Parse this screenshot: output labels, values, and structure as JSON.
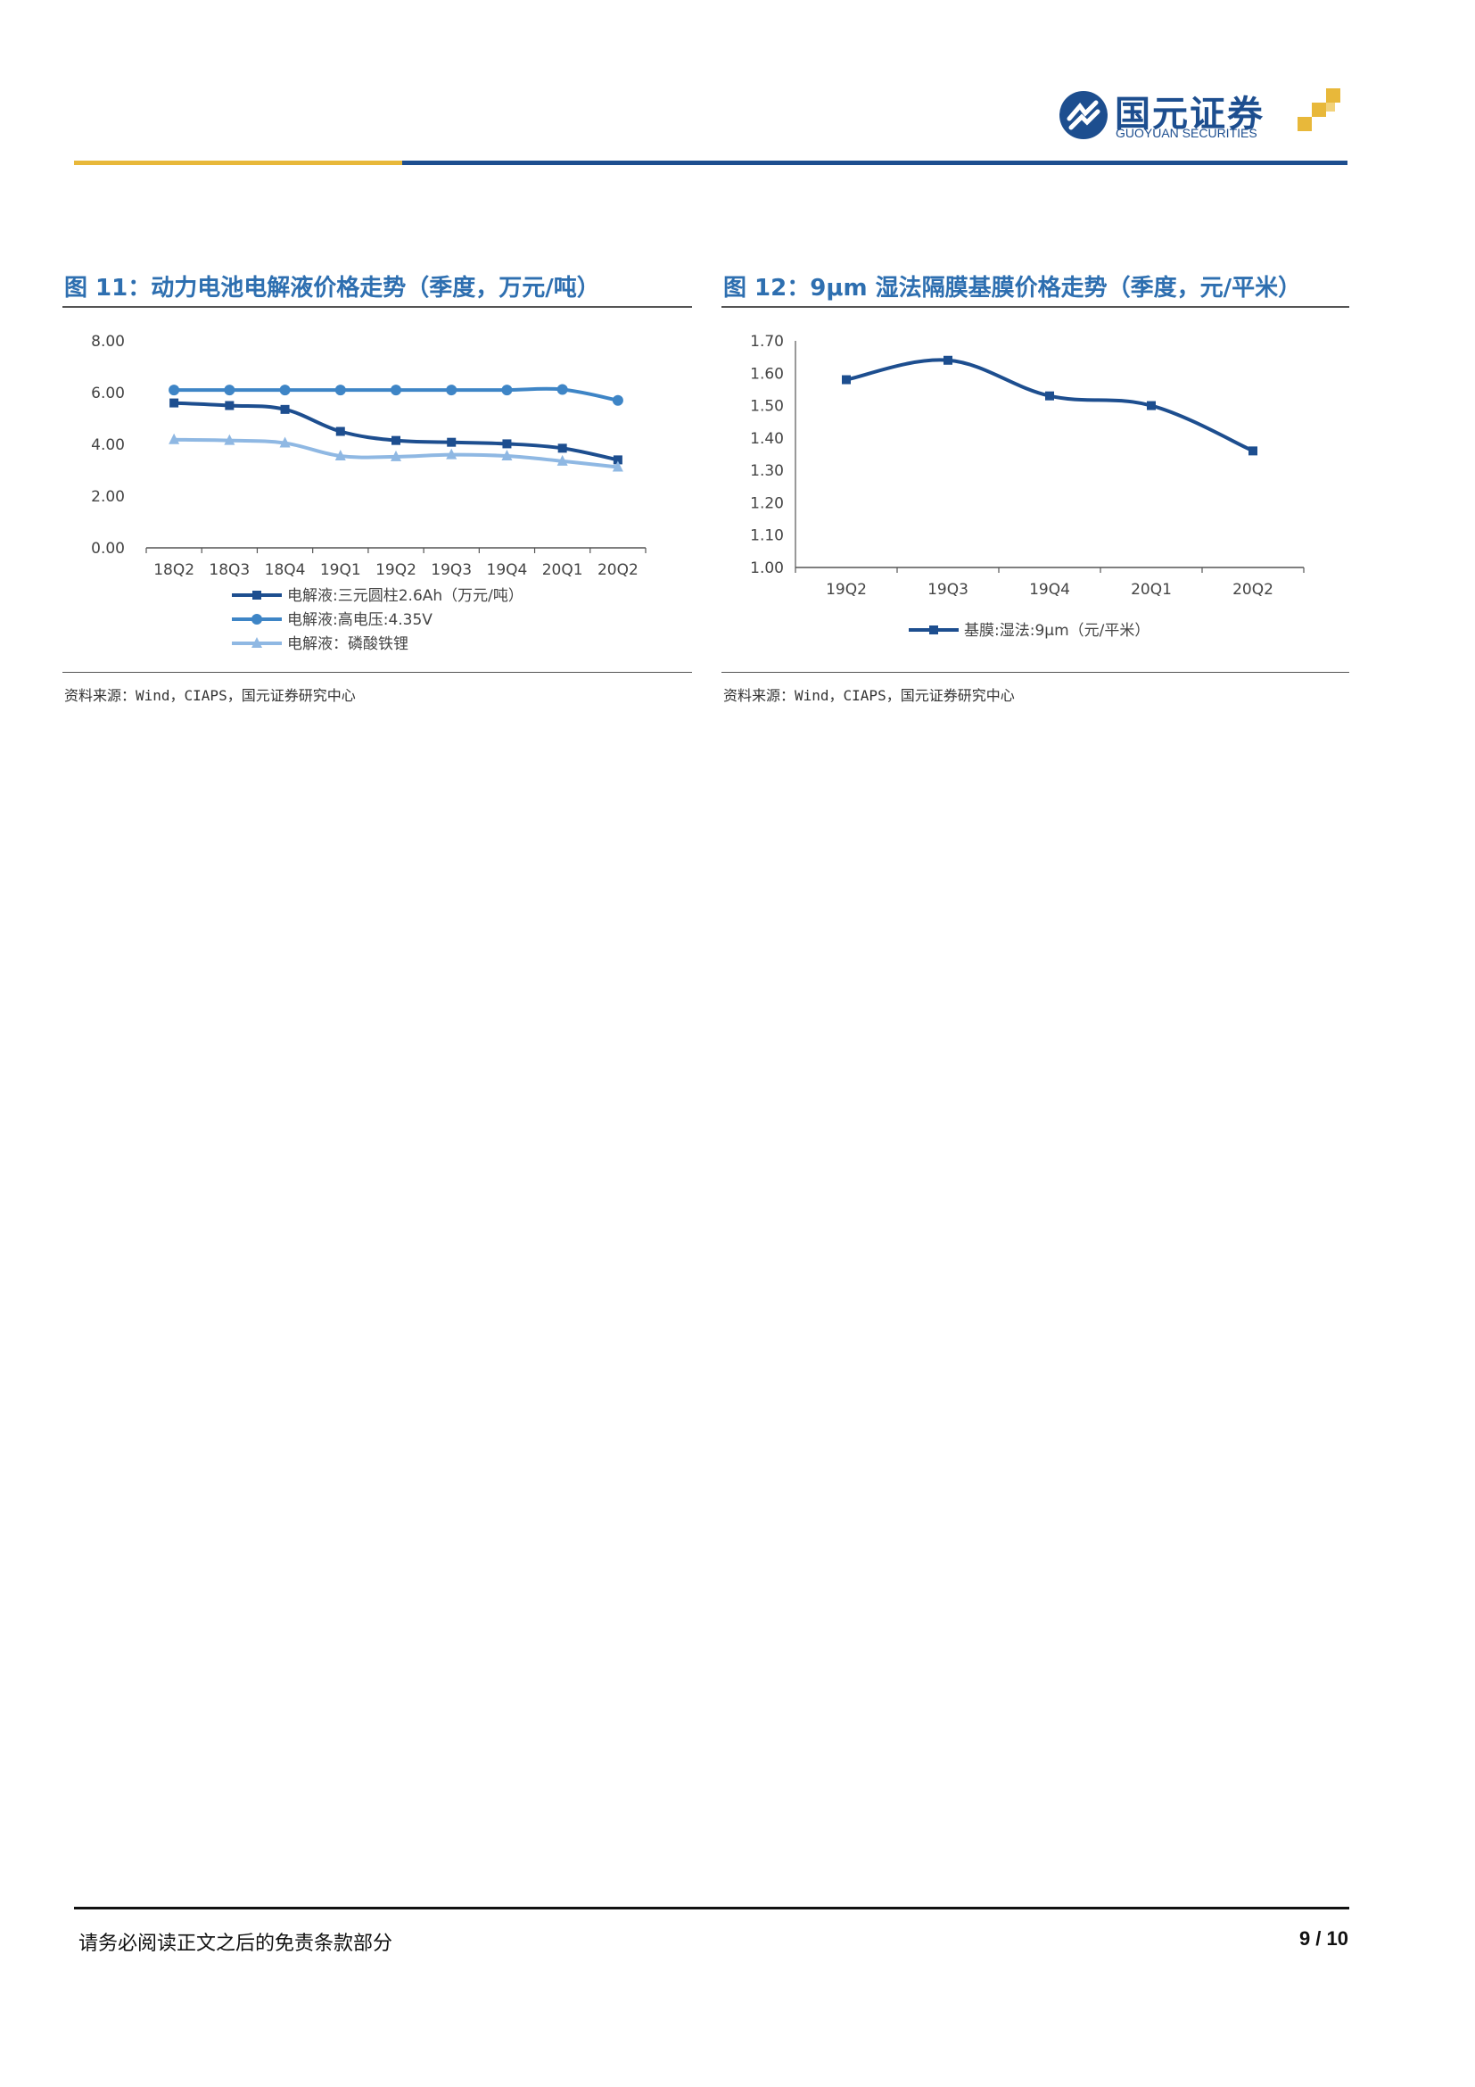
{
  "header": {
    "logo_cn": "国元证券",
    "logo_en": "GUOYUAN SECURITIES"
  },
  "figures": [
    {
      "title": "图 11：动力电池电解液价格走势（季度，万元/吨）",
      "source": "资料来源：Wind，CIAPS，国元证券研究中心"
    },
    {
      "title": "图 12：9μm 湿法隔膜基膜价格走势（季度，元/平米）",
      "source": "资料来源：Wind，CIAPS，国元证券研究中心"
    }
  ],
  "chart_data": [
    {
      "type": "line",
      "categories": [
        "18Q2",
        "18Q3",
        "18Q4",
        "19Q1",
        "19Q2",
        "19Q3",
        "19Q4",
        "20Q1",
        "20Q2"
      ],
      "ylim": [
        0,
        8
      ],
      "yticks": [
        "0.00",
        "2.00",
        "4.00",
        "6.00",
        "8.00"
      ],
      "grid": false,
      "legend_position": "bottom",
      "series": [
        {
          "name": "电解液:三元圆柱2.6Ah（万元/吨）",
          "marker": "square",
          "color": "#1d4e8f",
          "values": [
            5.6,
            5.5,
            5.35,
            4.5,
            4.15,
            4.08,
            4.02,
            3.85,
            3.4
          ]
        },
        {
          "name": "电解液:高电压:4.35V",
          "marker": "circle",
          "color": "#3e85c6",
          "values": [
            6.1,
            6.1,
            6.1,
            6.1,
            6.1,
            6.1,
            6.1,
            6.12,
            5.7
          ]
        },
        {
          "name": "电解液：磷酸铁锂",
          "marker": "triangle",
          "color": "#8fb8e3",
          "values": [
            4.18,
            4.15,
            4.05,
            3.55,
            3.52,
            3.6,
            3.55,
            3.35,
            3.12
          ]
        }
      ]
    },
    {
      "type": "line",
      "categories": [
        "19Q2",
        "19Q3",
        "19Q4",
        "20Q1",
        "20Q2"
      ],
      "ylim": [
        1.0,
        1.7
      ],
      "yticks": [
        "1.00",
        "1.10",
        "1.20",
        "1.30",
        "1.40",
        "1.50",
        "1.60",
        "1.70"
      ],
      "grid": false,
      "legend_position": "bottom",
      "series": [
        {
          "name": "基膜:湿法:9μm（元/平米）",
          "marker": "square",
          "color": "#1d4e8f",
          "values": [
            1.58,
            1.64,
            1.53,
            1.5,
            1.36
          ]
        }
      ]
    }
  ],
  "footer": {
    "disclaimer": "请务必阅读正文之后的免责条款部分",
    "page": "9 / 10"
  }
}
